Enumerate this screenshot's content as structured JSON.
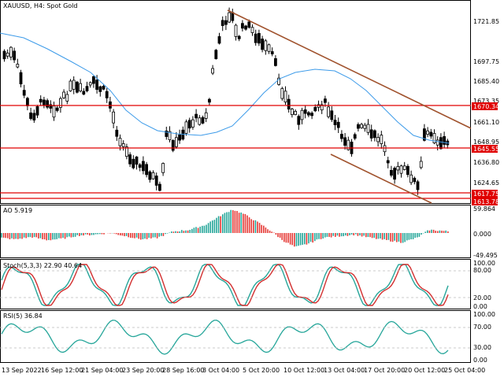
{
  "title": "XAUUSD, H4:  Spot Gold",
  "colors": {
    "bull": "#000000",
    "bear": "#000000",
    "ma": "#3d9be9",
    "hline": "#e00000",
    "channel": "#a0522d",
    "ao_up": "#26a69a",
    "ao_down": "#e53935",
    "stoch_main": "#26a69a",
    "stoch_signal": "#d32f2f",
    "rsi": "#26a69a",
    "tag_bg": "#e00000"
  },
  "main": {
    "price_labels": [
      "1721.85",
      "1697.75",
      "1685.40",
      "1673.35",
      "1661.10",
      "1648.95",
      "1636.80",
      "1624.65"
    ],
    "tags": [
      "1670.34",
      "1645.55",
      "1617.75",
      "1613.78"
    ]
  },
  "ao": {
    "label": "AO 5.919",
    "scale": [
      "59.864",
      "0.000",
      "-49.495"
    ]
  },
  "stoch": {
    "label": "Stoch(5,3,3) 22.90 40.64",
    "scale": [
      "100.00",
      "80.00",
      "20.00",
      "0.00"
    ]
  },
  "rsi": {
    "label": "RSI(5) 36.84",
    "scale": [
      "100.00",
      "70.00",
      "30.00",
      "0.00"
    ]
  },
  "time_axis": [
    "13 Sep 2022",
    "16 Sep 12:00",
    "21 Sep 04:00",
    "23 Sep 20:00",
    "28 Sep 16:00",
    "3 Oct 04:00",
    "5 Oct 20:00",
    "10 Oct 12:00",
    "13 Oct 04:00",
    "17 Oct 20:00",
    "20 Oct 12:00",
    "25 Oct 04:00"
  ]
}
